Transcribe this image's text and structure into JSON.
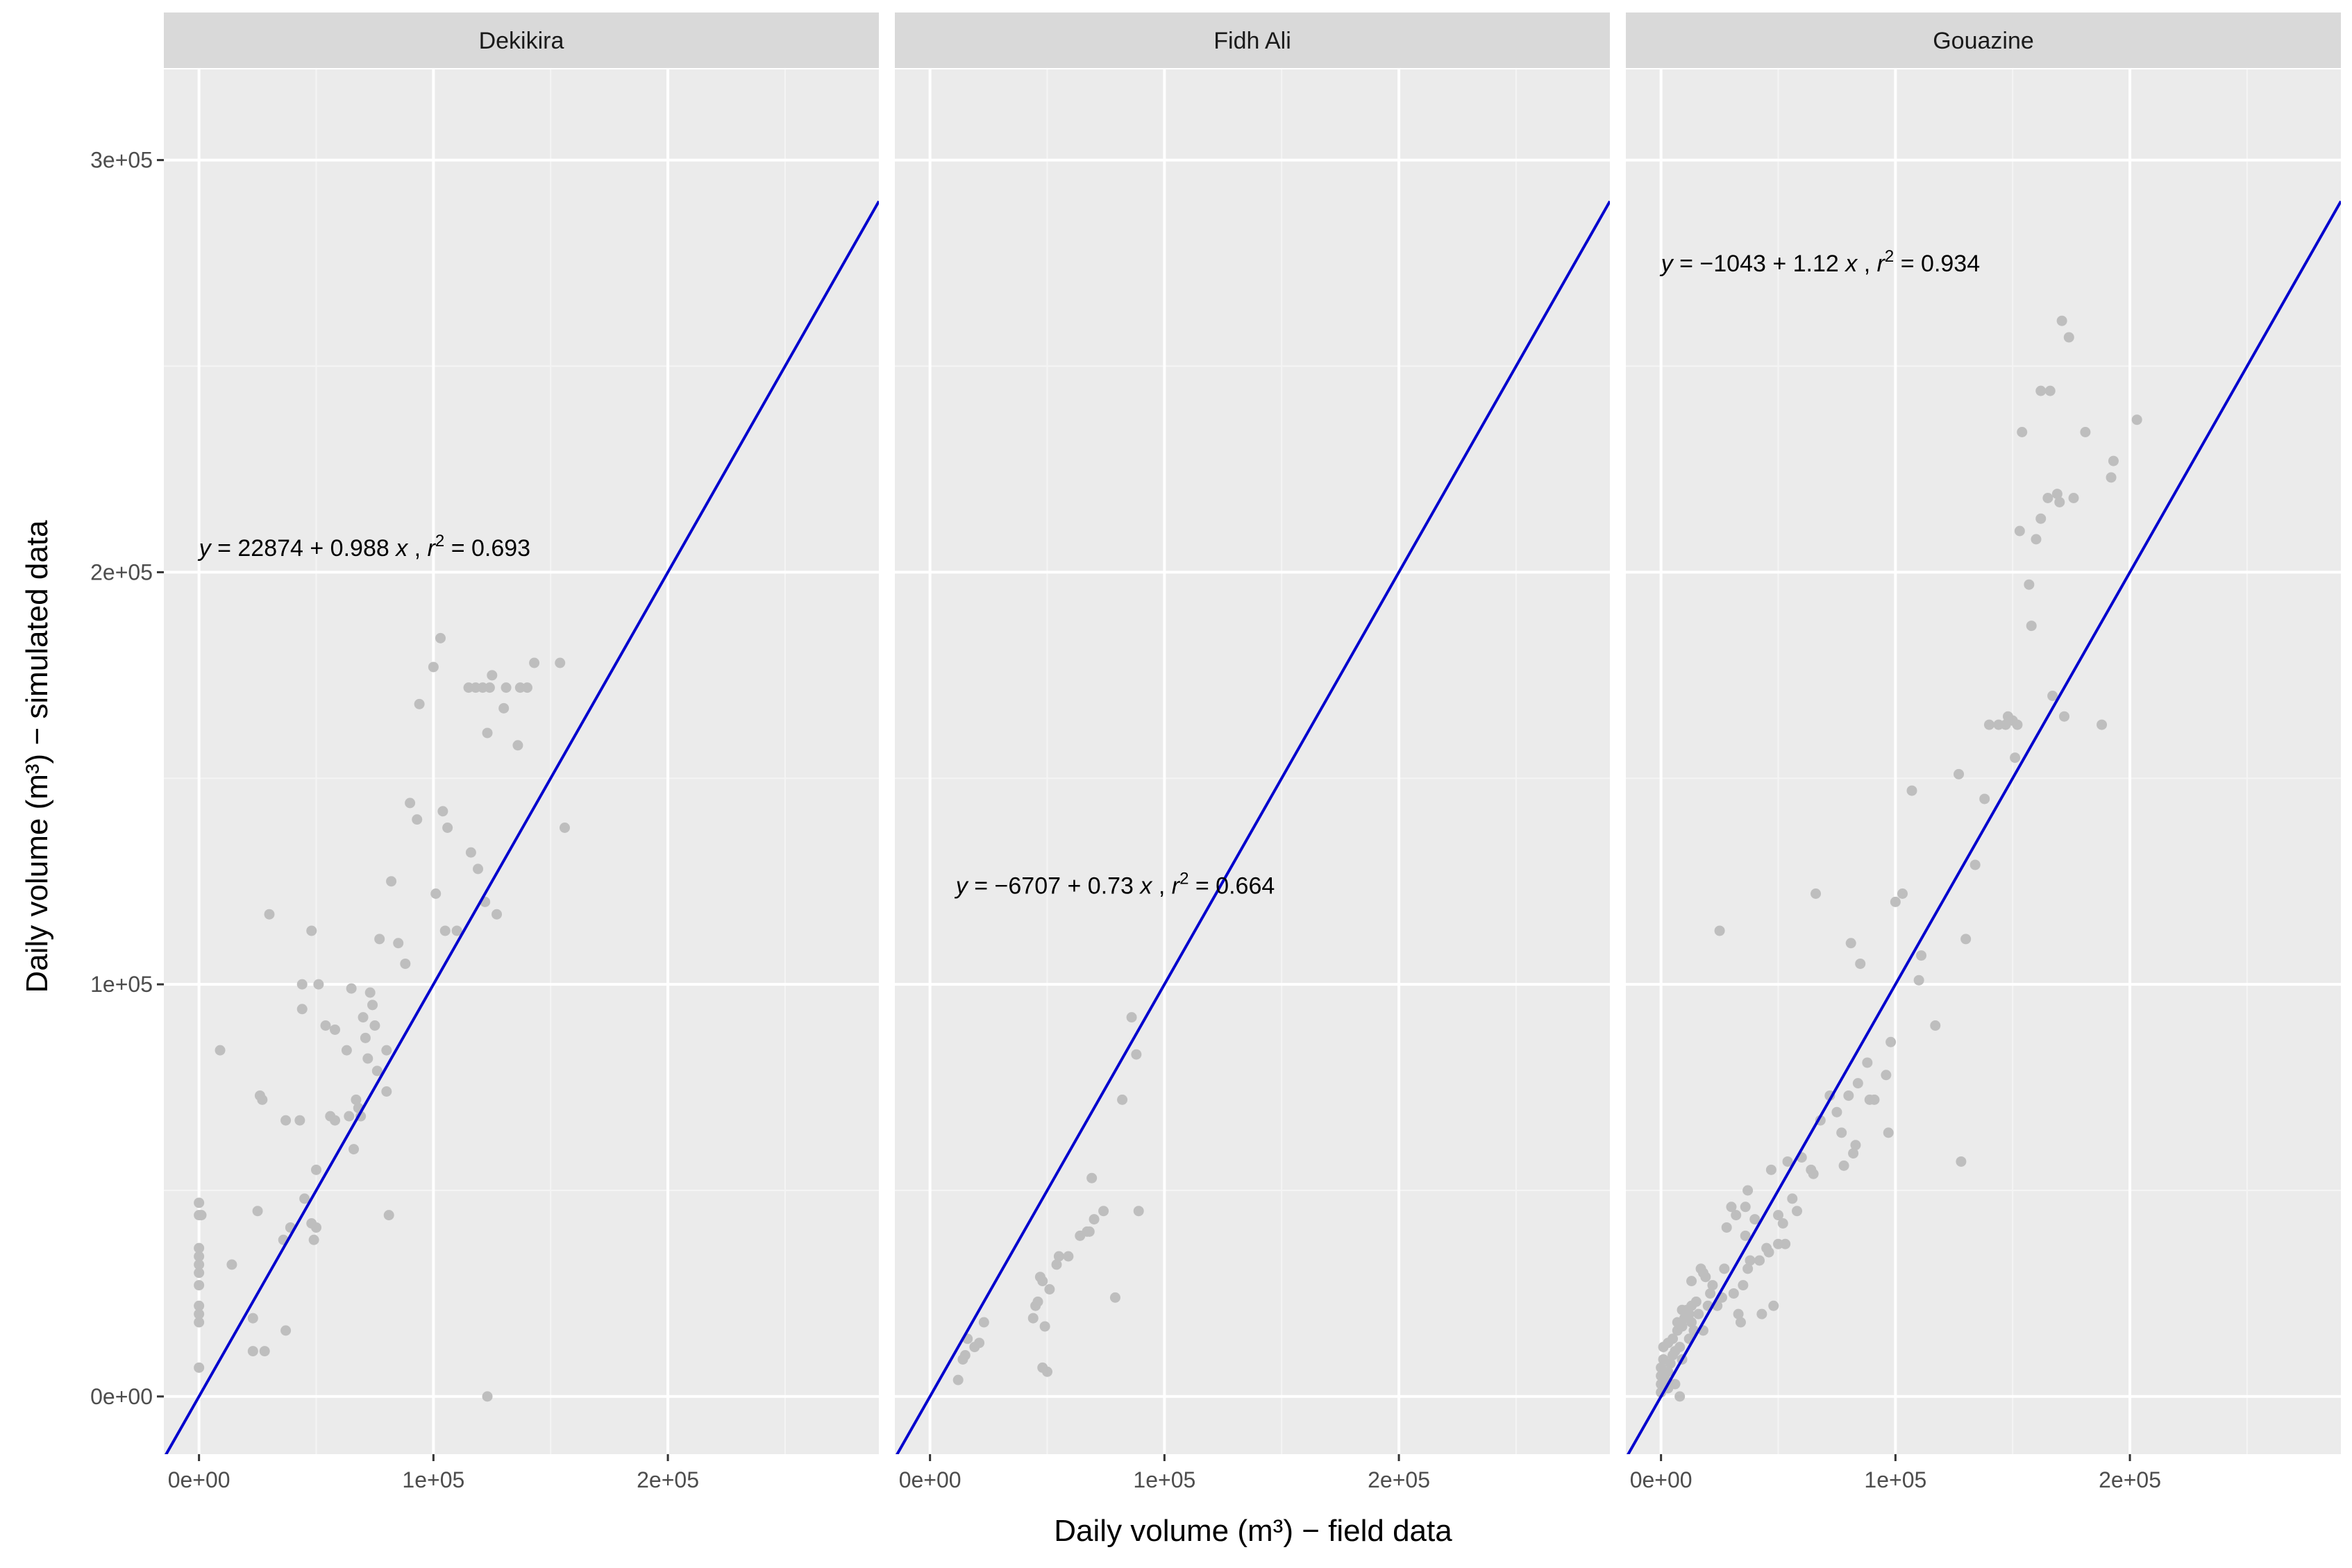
{
  "colors": {
    "panel_background": "#ebebeb",
    "strip_background": "#d9d9d9",
    "grid_major": "#ffffff",
    "grid_minor": "#f4f4f4",
    "points": "#bebebe",
    "fit_line": "#0000cd"
  },
  "chart_data": {
    "type": "scatter",
    "xlabel": "Daily volume (m³) − field data",
    "ylabel": "Daily volume (m³) − simulated data",
    "xlim": [
      -15000,
      290000
    ],
    "ylim": [
      -14000,
      322000
    ],
    "x_ticks": [
      0,
      100000,
      200000
    ],
    "x_tick_labels": [
      "0e+00",
      "1e+05",
      "2e+05"
    ],
    "y_ticks": [
      0,
      100000,
      200000,
      300000
    ],
    "y_tick_labels": [
      "0e+00",
      "1e+05",
      "2e+05",
      "3e+05"
    ],
    "grid": true,
    "panels": [
      {
        "name": "Dekikira",
        "fit": {
          "intercept": 0,
          "slope": 1
        },
        "equation": {
          "parts": [
            "y",
            " = 22874 + 0.988 ",
            "x",
            " ,  ",
            "r",
            "2",
            " = 0.693"
          ],
          "x": 0,
          "y": 206000
        },
        "points": [
          [
            0,
            7000
          ],
          [
            0,
            18000
          ],
          [
            0,
            20000
          ],
          [
            0,
            22000
          ],
          [
            0,
            27000
          ],
          [
            0,
            30000
          ],
          [
            0,
            32000
          ],
          [
            0,
            34000
          ],
          [
            0,
            36000
          ],
          [
            0,
            44000
          ],
          [
            0,
            47000
          ],
          [
            1000,
            44000
          ],
          [
            9000,
            84000
          ],
          [
            14000,
            32000
          ],
          [
            23000,
            11000
          ],
          [
            23000,
            19000
          ],
          [
            25000,
            45000
          ],
          [
            26000,
            73000
          ],
          [
            27000,
            72000
          ],
          [
            28000,
            11000
          ],
          [
            30000,
            117000
          ],
          [
            36000,
            38000
          ],
          [
            37000,
            67000
          ],
          [
            37000,
            16000
          ],
          [
            39000,
            41000
          ],
          [
            43000,
            67000
          ],
          [
            44000,
            100000
          ],
          [
            44000,
            94000
          ],
          [
            45000,
            48000
          ],
          [
            48000,
            113000
          ],
          [
            48000,
            42000
          ],
          [
            49000,
            38000
          ],
          [
            50000,
            41000
          ],
          [
            50000,
            55000
          ],
          [
            51000,
            100000
          ],
          [
            54000,
            90000
          ],
          [
            56000,
            68000
          ],
          [
            58000,
            67000
          ],
          [
            58000,
            89000
          ],
          [
            63000,
            84000
          ],
          [
            64000,
            68000
          ],
          [
            65000,
            99000
          ],
          [
            66000,
            60000
          ],
          [
            67000,
            72000
          ],
          [
            68000,
            70000
          ],
          [
            69000,
            68000
          ],
          [
            70000,
            92000
          ],
          [
            71000,
            87000
          ],
          [
            72000,
            82000
          ],
          [
            73000,
            98000
          ],
          [
            74000,
            95000
          ],
          [
            75000,
            90000
          ],
          [
            76000,
            79000
          ],
          [
            77000,
            111000
          ],
          [
            80000,
            74000
          ],
          [
            80000,
            84000
          ],
          [
            81000,
            44000
          ],
          [
            82000,
            125000
          ],
          [
            85000,
            110000
          ],
          [
            88000,
            105000
          ],
          [
            90000,
            144000
          ],
          [
            93000,
            140000
          ],
          [
            94000,
            168000
          ],
          [
            100000,
            177000
          ],
          [
            101000,
            122000
          ],
          [
            103000,
            184000
          ],
          [
            104000,
            142000
          ],
          [
            105000,
            113000
          ],
          [
            106000,
            138000
          ],
          [
            110000,
            113000
          ],
          [
            115000,
            172000
          ],
          [
            116000,
            132000
          ],
          [
            118000,
            172000
          ],
          [
            119000,
            128000
          ],
          [
            121000,
            172000
          ],
          [
            122000,
            120000
          ],
          [
            123000,
            0
          ],
          [
            123000,
            161000
          ],
          [
            124000,
            172000
          ],
          [
            125000,
            175000
          ],
          [
            127000,
            117000
          ],
          [
            130000,
            167000
          ],
          [
            131000,
            172000
          ],
          [
            136000,
            158000
          ],
          [
            137000,
            172000
          ],
          [
            140000,
            172000
          ],
          [
            143000,
            178000
          ],
          [
            154000,
            178000
          ],
          [
            156000,
            138000
          ]
        ]
      },
      {
        "name": "Fidh Ali",
        "fit": {
          "intercept": 0,
          "slope": 1
        },
        "equation": {
          "parts": [
            "y",
            " = −6707 + 0.73 ",
            "x",
            " ,  ",
            "r",
            "2",
            " = 0.664"
          ],
          "x": 11000,
          "y": 124000
        },
        "points": [
          [
            12000,
            4000
          ],
          [
            14000,
            9000
          ],
          [
            15000,
            10000
          ],
          [
            16000,
            14000
          ],
          [
            19000,
            12000
          ],
          [
            21000,
            13000
          ],
          [
            23000,
            18000
          ],
          [
            44000,
            19000
          ],
          [
            45000,
            22000
          ],
          [
            46000,
            23000
          ],
          [
            47000,
            29000
          ],
          [
            48000,
            7000
          ],
          [
            48000,
            28000
          ],
          [
            49000,
            17000
          ],
          [
            50000,
            6000
          ],
          [
            51000,
            26000
          ],
          [
            54000,
            32000
          ],
          [
            55000,
            34000
          ],
          [
            59000,
            34000
          ],
          [
            64000,
            39000
          ],
          [
            67000,
            40000
          ],
          [
            68000,
            40000
          ],
          [
            69000,
            53000
          ],
          [
            70000,
            43000
          ],
          [
            74000,
            45000
          ],
          [
            79000,
            24000
          ],
          [
            82000,
            72000
          ],
          [
            86000,
            92000
          ],
          [
            88000,
            83000
          ],
          [
            89000,
            45000
          ]
        ]
      },
      {
        "name": "Gouazine",
        "fit": {
          "intercept": 0,
          "slope": 1
        },
        "equation": {
          "parts": [
            "y",
            " = −1043 + 1.12 ",
            "x",
            " ,  ",
            "r",
            "2",
            " = 0.934"
          ],
          "x": 0,
          "y": 275000
        },
        "points": [
          [
            0,
            1000
          ],
          [
            0,
            3000
          ],
          [
            0,
            5000
          ],
          [
            0,
            7000
          ],
          [
            1000,
            9000
          ],
          [
            1000,
            12000
          ],
          [
            2000,
            4000
          ],
          [
            3000,
            2000
          ],
          [
            3000,
            6000
          ],
          [
            3000,
            13000
          ],
          [
            4000,
            8000
          ],
          [
            5000,
            10000
          ],
          [
            5000,
            14000
          ],
          [
            6000,
            3000
          ],
          [
            6000,
            11000
          ],
          [
            7000,
            16000
          ],
          [
            7000,
            18000
          ],
          [
            8000,
            0
          ],
          [
            8000,
            12000
          ],
          [
            9000,
            9000
          ],
          [
            9000,
            17000
          ],
          [
            9000,
            21000
          ],
          [
            10000,
            19000
          ],
          [
            11000,
            21000
          ],
          [
            12000,
            14000
          ],
          [
            12000,
            20000
          ],
          [
            13000,
            18000
          ],
          [
            13000,
            22000
          ],
          [
            13000,
            28000
          ],
          [
            14000,
            16000
          ],
          [
            15000,
            23000
          ],
          [
            16000,
            20000
          ],
          [
            17000,
            31000
          ],
          [
            18000,
            30000
          ],
          [
            18000,
            16000
          ],
          [
            19000,
            29000
          ],
          [
            20000,
            22000
          ],
          [
            21000,
            25000
          ],
          [
            22000,
            27000
          ],
          [
            24000,
            22000
          ],
          [
            25000,
            113000
          ],
          [
            26000,
            24000
          ],
          [
            27000,
            31000
          ],
          [
            28000,
            41000
          ],
          [
            30000,
            46000
          ],
          [
            31000,
            25000
          ],
          [
            32000,
            44000
          ],
          [
            33000,
            20000
          ],
          [
            34000,
            18000
          ],
          [
            35000,
            27000
          ],
          [
            36000,
            39000
          ],
          [
            36000,
            46000
          ],
          [
            37000,
            31000
          ],
          [
            37000,
            50000
          ],
          [
            38000,
            33000
          ],
          [
            40000,
            43000
          ],
          [
            42000,
            33000
          ],
          [
            43000,
            20000
          ],
          [
            45000,
            36000
          ],
          [
            46000,
            35000
          ],
          [
            47000,
            55000
          ],
          [
            48000,
            22000
          ],
          [
            50000,
            37000
          ],
          [
            50000,
            44000
          ],
          [
            52000,
            42000
          ],
          [
            53000,
            37000
          ],
          [
            54000,
            57000
          ],
          [
            56000,
            48000
          ],
          [
            58000,
            45000
          ],
          [
            60000,
            58000
          ],
          [
            64000,
            55000
          ],
          [
            65000,
            54000
          ],
          [
            66000,
            122000
          ],
          [
            68000,
            67000
          ],
          [
            72000,
            73000
          ],
          [
            75000,
            69000
          ],
          [
            77000,
            64000
          ],
          [
            78000,
            56000
          ],
          [
            80000,
            73000
          ],
          [
            81000,
            110000
          ],
          [
            82000,
            59000
          ],
          [
            83000,
            61000
          ],
          [
            84000,
            76000
          ],
          [
            85000,
            105000
          ],
          [
            88000,
            81000
          ],
          [
            89000,
            72000
          ],
          [
            91000,
            72000
          ],
          [
            96000,
            78000
          ],
          [
            97000,
            64000
          ],
          [
            98000,
            86000
          ],
          [
            100000,
            120000
          ],
          [
            103000,
            122000
          ],
          [
            107000,
            147000
          ],
          [
            110000,
            101000
          ],
          [
            111000,
            107000
          ],
          [
            117000,
            90000
          ],
          [
            127000,
            151000
          ],
          [
            128000,
            57000
          ],
          [
            130000,
            111000
          ],
          [
            134000,
            129000
          ],
          [
            138000,
            145000
          ],
          [
            140000,
            163000
          ],
          [
            144000,
            163000
          ],
          [
            147000,
            163000
          ],
          [
            148000,
            165000
          ],
          [
            150000,
            164000
          ],
          [
            151000,
            155000
          ],
          [
            152000,
            163000
          ],
          [
            153000,
            210000
          ],
          [
            154000,
            234000
          ],
          [
            157000,
            197000
          ],
          [
            158000,
            187000
          ],
          [
            160000,
            208000
          ],
          [
            162000,
            213000
          ],
          [
            162000,
            244000
          ],
          [
            165000,
            218000
          ],
          [
            166000,
            244000
          ],
          [
            167000,
            170000
          ],
          [
            169000,
            219000
          ],
          [
            170000,
            217000
          ],
          [
            171000,
            261000
          ],
          [
            172000,
            165000
          ],
          [
            174000,
            257000
          ],
          [
            176000,
            218000
          ],
          [
            181000,
            234000
          ],
          [
            188000,
            163000
          ],
          [
            192000,
            223000
          ],
          [
            193000,
            227000
          ],
          [
            203000,
            237000
          ]
        ]
      }
    ]
  }
}
